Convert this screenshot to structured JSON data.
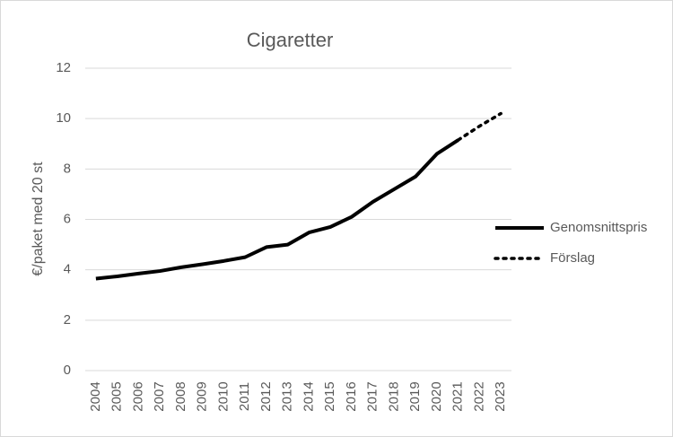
{
  "chart_data": {
    "type": "line",
    "title": "Cigaretter",
    "y_label": "€/paket med 20 st",
    "categories": [
      "2004",
      "2005",
      "2006",
      "2007",
      "2008",
      "2009",
      "2010",
      "2011",
      "2012",
      "2013",
      "2014",
      "2015",
      "2016",
      "2017",
      "2018",
      "2019",
      "2020",
      "2021",
      "2022",
      "2023"
    ],
    "series": [
      {
        "name": "Genomsnittspris",
        "color": "#000000",
        "style": "solid",
        "values": [
          3.65,
          3.74,
          3.85,
          3.95,
          4.1,
          4.22,
          4.35,
          4.5,
          4.9,
          5.0,
          5.48,
          5.7,
          6.1,
          6.7,
          7.2,
          7.7,
          8.6,
          9.15,
          null,
          null
        ]
      },
      {
        "name": "Förslag",
        "color": "#000000",
        "style": "dotted",
        "values": [
          null,
          null,
          null,
          null,
          null,
          null,
          null,
          null,
          null,
          null,
          null,
          null,
          null,
          null,
          null,
          null,
          null,
          9.15,
          9.7,
          10.2
        ]
      }
    ],
    "ylim": [
      0,
      12
    ],
    "yticks": [
      0,
      2,
      4,
      6,
      8,
      10,
      12
    ],
    "grid": true,
    "legend": "right"
  }
}
